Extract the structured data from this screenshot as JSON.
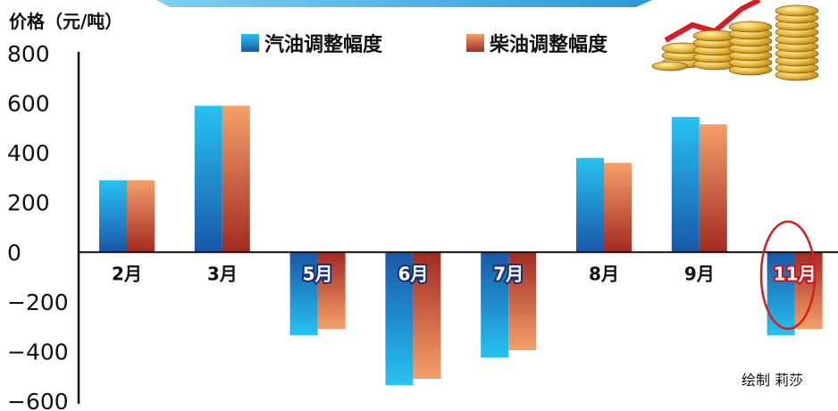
{
  "chart_data": {
    "type": "bar",
    "ylabel": "价格（元/吨）",
    "categories": [
      "2月",
      "3月",
      "5月",
      "6月",
      "7月",
      "8月",
      "9月",
      "11月"
    ],
    "highlight_category": "11月",
    "series": [
      {
        "name": "汽油调整幅度",
        "values": [
          290,
          590,
          -335,
          -535,
          -425,
          380,
          545,
          -335
        ],
        "colors": [
          "#27c3f0",
          "#1a57a8"
        ]
      },
      {
        "name": "柴油调整幅度",
        "values": [
          290,
          590,
          -310,
          -510,
          -395,
          360,
          515,
          -310
        ],
        "colors": [
          "#f4a06a",
          "#a32a22"
        ]
      }
    ],
    "yticks": [
      800,
      600,
      400,
      200,
      0,
      -200,
      -400,
      -600
    ],
    "ytick_labels": [
      "800",
      "600",
      "400",
      "200",
      "0",
      "−200",
      "−400",
      "−600"
    ],
    "ylim": [
      -600,
      800
    ],
    "grid": false,
    "legend_position": "top"
  },
  "credit": "绘制 莉莎"
}
